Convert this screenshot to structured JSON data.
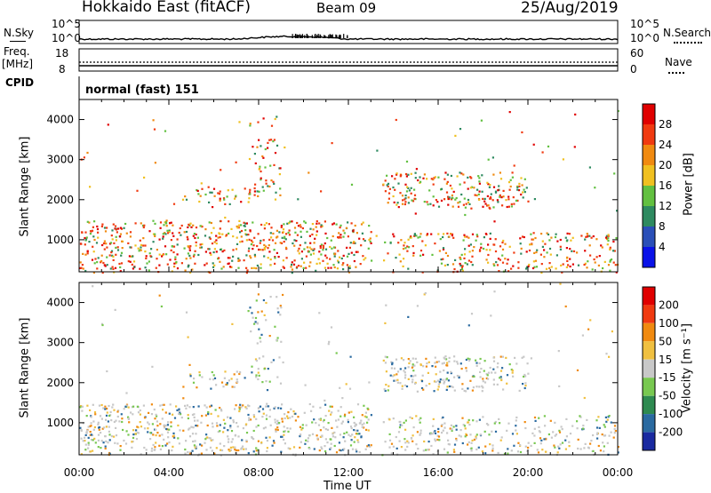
{
  "header": {
    "station": "Hokkaido East (fitACF)",
    "beam": "Beam 09",
    "date": "25/Aug/2019"
  },
  "noise_panel": {
    "left_label": "N.Sky",
    "right_label": "N.Search",
    "tick_top": "10^5",
    "tick_bottom": "10^0"
  },
  "freq_panel": {
    "left_label_line1": "Freq.",
    "left_label_line2": "[MHz]",
    "left_tick_top": "18",
    "left_tick_bottom": "8",
    "right_tick_top": "60",
    "right_tick_bottom": "0",
    "right_label": "Nave"
  },
  "cpid_panel": {
    "label": "CPID",
    "value": "normal (fast) 151"
  },
  "chart_data": [
    {
      "type": "heatmap",
      "title": "",
      "ylabel": "Slant Range [km]",
      "xlabel": "",
      "ylim": [
        200,
        4500
      ],
      "yticks": [
        "1000",
        "2000",
        "3000",
        "4000"
      ],
      "colorbar": {
        "label": "Power [dB]",
        "ticks": [
          "4",
          "8",
          "12",
          "16",
          "20",
          "24",
          "28"
        ],
        "colors": [
          "#0a12e8",
          "#2a4fb8",
          "#2e8a60",
          "#62c040",
          "#f0c020",
          "#f08a10",
          "#f03a10",
          "#e00000"
        ]
      }
    },
    {
      "type": "heatmap",
      "title": "",
      "ylabel": "Slant Range [km]",
      "xlabel": "Time UT",
      "ylim": [
        200,
        4500
      ],
      "yticks": [
        "1000",
        "2000",
        "3000",
        "4000"
      ],
      "xticks": [
        "00:00",
        "04:00",
        "08:00",
        "12:00",
        "16:00",
        "20:00",
        "00:00"
      ],
      "colorbar": {
        "label": "Velocity [m s⁻¹]",
        "ticks": [
          "200",
          "100",
          "50",
          "15",
          "-15",
          "-50",
          "-100",
          "-200"
        ],
        "colors": [
          "#1a2aa0",
          "#2a6aa0",
          "#2e8a50",
          "#78c850",
          "#c8c8c8",
          "#f0c040",
          "#f08a10",
          "#f03a10",
          "#e00000"
        ]
      }
    }
  ]
}
